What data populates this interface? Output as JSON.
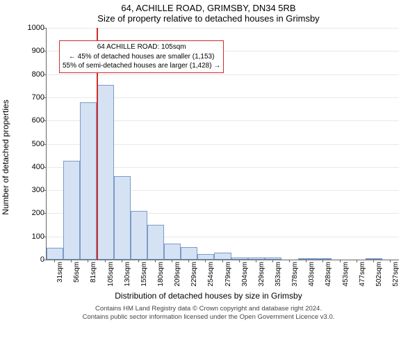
{
  "title_line1": "64, ACHILLE ROAD, GRIMSBY, DN34 5RB",
  "title_line2": "Size of property relative to detached houses in Grimsby",
  "ylabel": "Number of detached properties",
  "xlabel": "Distribution of detached houses by size in Grimsby",
  "footer_line1": "Contains HM Land Registry data © Crown copyright and database right 2024.",
  "footer_line2": "Contains public sector information licensed under the Open Government Licence v3.0.",
  "chart": {
    "type": "histogram",
    "ylim": [
      0,
      1000
    ],
    "ytick_step": 100,
    "x_categories": [
      "31sqm",
      "56sqm",
      "81sqm",
      "105sqm",
      "130sqm",
      "155sqm",
      "180sqm",
      "209sqm",
      "229sqm",
      "254sqm",
      "279sqm",
      "304sqm",
      "329sqm",
      "353sqm",
      "378sqm",
      "403sqm",
      "428sqm",
      "453sqm",
      "477sqm",
      "502sqm",
      "527sqm"
    ],
    "values": [
      50,
      425,
      680,
      755,
      360,
      210,
      150,
      70,
      55,
      25,
      30,
      10,
      10,
      8,
      0,
      5,
      3,
      0,
      0,
      3,
      0
    ],
    "bar_fill": "#d5e2f3",
    "bar_border": "#7a9bc9",
    "background_color": "#ffffff",
    "grid_color": "#666666",
    "marker": {
      "index": 3,
      "color": "#d12a2a"
    },
    "annotation": {
      "line1": "64 ACHILLE ROAD: 105sqm",
      "line2": "← 45% of detached houses are smaller (1,153)",
      "line3": "55% of semi-detached houses are larger (1,428) →",
      "border_color": "#d12a2a"
    }
  }
}
